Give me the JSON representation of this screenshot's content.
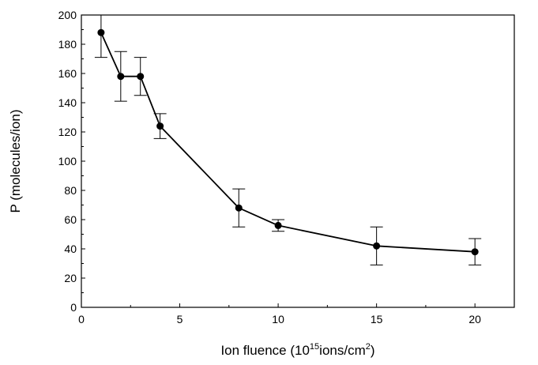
{
  "chart_data": {
    "type": "scatter",
    "title": "",
    "xlabel": {
      "prefix": "Ion fluence (10",
      "exponent": "15",
      "middle": "ions/cm",
      "unit_exponent": "2",
      "suffix": ")"
    },
    "ylabel": "P (molecules/ion)",
    "xlim": [
      0,
      22
    ],
    "ylim": [
      0,
      200
    ],
    "x_ticks": [
      "0",
      "5",
      "10",
      "15",
      "20"
    ],
    "y_ticks": [
      "0",
      "20",
      "40",
      "60",
      "80",
      "100",
      "120",
      "140",
      "160",
      "180",
      "200"
    ],
    "grid": false,
    "legend": "none",
    "connected": true,
    "marker": "filled-circle",
    "line_color": "#000000",
    "marker_color": "#000000",
    "series": [
      {
        "x": [
          1,
          2,
          3,
          4,
          8,
          10,
          15,
          20
        ],
        "y": [
          188,
          158,
          158,
          124,
          68,
          56,
          42,
          38
        ],
        "error": [
          17,
          17,
          13,
          8.5,
          13,
          4,
          13,
          9
        ]
      }
    ]
  }
}
